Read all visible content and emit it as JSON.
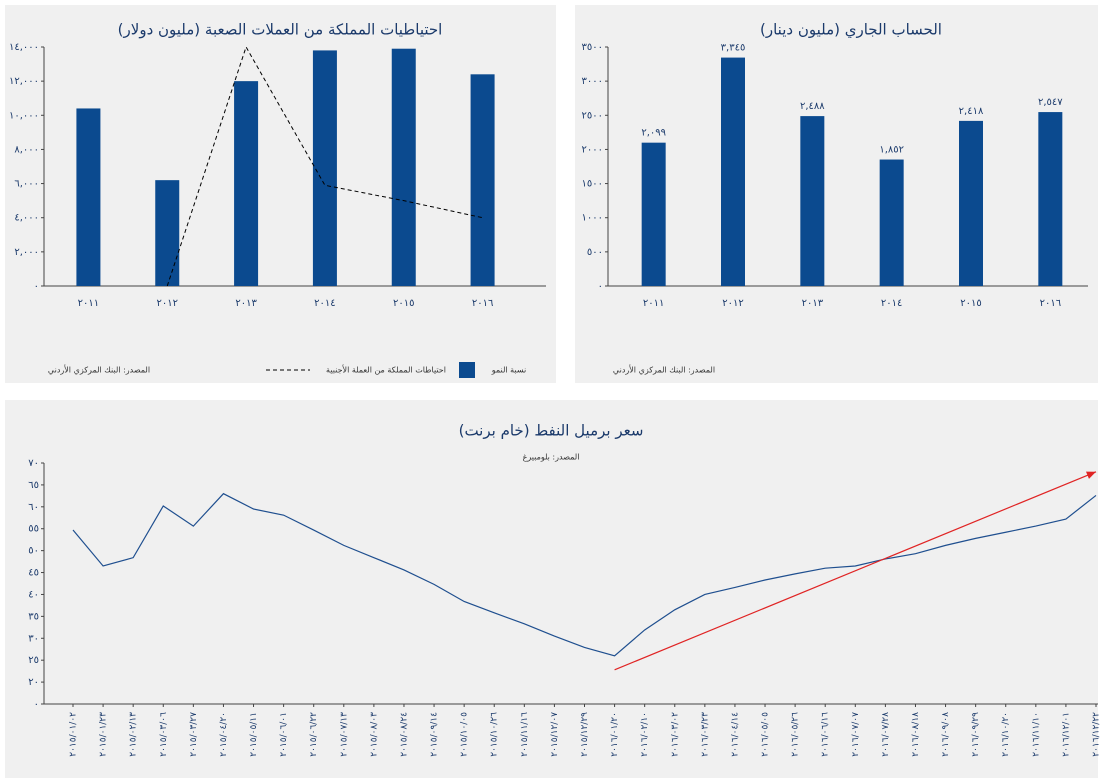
{
  "chart_data": [
    {
      "type": "bar",
      "title": "احتياطيات المملكة من العملات الصعبة (مليون دولار)",
      "categories": [
        "٢٠١١",
        "٢٠١٢",
        "٢٠١٣",
        "٢٠١٤",
        "٢٠١٥",
        "٢٠١٦"
      ],
      "series": [
        {
          "name": "نسبة النمو",
          "type": "bar",
          "color": "#0b4a8f",
          "values": [
            10400,
            6200,
            12000,
            13800,
            13900,
            12400
          ]
        },
        {
          "name": "احتياطات المملكة من العملة الأجنبية",
          "type": "line",
          "dashed": true,
          "color": "#000000",
          "values": [
            null,
            0,
            14000,
            5900,
            5000,
            4000
          ]
        }
      ],
      "ylim": [
        0,
        14000
      ],
      "yticks": [
        {
          "value": 0,
          "label": "٠"
        },
        {
          "value": 2000,
          "label": "٢,٠٠٠"
        },
        {
          "value": 4000,
          "label": "٤,٠٠٠"
        },
        {
          "value": 6000,
          "label": "٦,٠٠٠"
        },
        {
          "value": 8000,
          "label": "٨,٠٠٠"
        },
        {
          "value": 10000,
          "label": "١٠,٠٠٠"
        },
        {
          "value": 12000,
          "label": "١٢,٠٠٠"
        },
        {
          "value": 14000,
          "label": "١٤,٠٠٠"
        }
      ],
      "source": "المصدر: البنك المركزي الأردني"
    },
    {
      "type": "bar",
      "title": "الحساب الجاري (مليون دينار)",
      "categories": [
        "٢٠١١",
        "٢٠١٢",
        "٢٠١٣",
        "٢٠١٤",
        "٢٠١٥",
        "٢٠١٦"
      ],
      "values": [
        2099,
        3345,
        2488,
        1852,
        2418,
        2547
      ],
      "value_labels": [
        "٢,٠٩٩",
        "٣,٣٤٥",
        "٢,٤٨٨",
        "١,٨٥٢",
        "٢,٤١٨",
        "٢,٥٤٧"
      ],
      "color": "#0b4a8f",
      "ylim": [
        0,
        3500
      ],
      "yticks": [
        {
          "value": 0,
          "label": "٠"
        },
        {
          "value": 500,
          "label": "٥٠٠"
        },
        {
          "value": 1000,
          "label": "١٠٠٠"
        },
        {
          "value": 1500,
          "label": "١٥٠٠"
        },
        {
          "value": 2000,
          "label": "٢٠٠٠"
        },
        {
          "value": 2500,
          "label": "٢٥٠٠"
        },
        {
          "value": 3000,
          "label": "٣٠٠٠"
        },
        {
          "value": 3500,
          "label": "٣٥٠٠"
        }
      ],
      "source": "المصدر: البنك المركزي الأردني"
    },
    {
      "type": "line",
      "title": "سعر برميل النفط (خام برنت)",
      "subtitle": "المصدر: بلومبيرغ",
      "x": [
        "٢٠١٥/٠١/٠٢",
        "٢٠١٥/٠١/٢٣",
        "٢٠١٥/٠٢/١٣",
        "٢٠١٥/٠٣/٠٦",
        "٢٠١٥/٠٣/٢٧",
        "٢٠١٥/٠٤/٢٠",
        "٢٠١٥/٠٥/١١",
        "٢٠١٥/٠٦/٠١",
        "٢٠١٥/٠٦/٢٢",
        "٢٠١٥/٠٧/١٣",
        "٢٠١٥/٠٨/٠٣",
        "٢٠١٥/٠٨/٢٤",
        "٢٠١٥/٠٩/١٤",
        "٢٠١٥/١٠/٠٥",
        "٢٠١٥/١٠/٢٦",
        "٢٠١٥/١١/١٦",
        "٢٠١٥/١٢/٠٧",
        "٢٠١٥/١٢/٢٩",
        "٢٠١٦/٠١/٢٠",
        "٢٠١٦/٠٢/١٠",
        "٢٠١٦/٠٣/٠٢",
        "٢٠١٦/٠٣/٢٣",
        "٢٠١٦/٠٤/١٤",
        "٢٠١٦/٠٥/٠٥",
        "٢٠١٦/٠٥/٢٦",
        "٢٠١٦/٠٦/١٦",
        "٢٠١٦/٠٧/٠٧",
        "٢٠١٦/٠٧/٢٨",
        "٢٠١٦/٠٨/١٨",
        "٢٠١٦/٠٩/٠٨",
        "٢٠١٦/٠٩/٢٩",
        "٢٠١٦/١٠/٢٠",
        "٢٠١٦/١١/١٠",
        "٢٠١٦/١٢/٠١",
        "٢٠١٦/١٢/٢٢"
      ],
      "series": [
        {
          "color": "#1f4f8f",
          "values": [
            54.7,
            46.5,
            48.4,
            60.2,
            55.6,
            63.0,
            59.5,
            58.1,
            54.7,
            51.2,
            48.4,
            45.6,
            42.3,
            38.4,
            35.8,
            33.3,
            30.5,
            27.9,
            26.0,
            31.9,
            36.5,
            40.0,
            41.6,
            43.3,
            44.7,
            46.0,
            46.5,
            48.1,
            49.3,
            51.2,
            52.8,
            54.2,
            55.6,
            57.2,
            62.6
          ]
        }
      ],
      "trend": {
        "color": "#e02424",
        "x": [
          "٢٠١٦/٠١/٢٠",
          "٢٠١٦/١٢/٢٢"
        ],
        "values": [
          22.8,
          68
        ]
      },
      "ylim": [
        0,
        70
      ],
      "yticks": [
        {
          "value": 0,
          "label": "٠"
        },
        {
          "value": 20,
          "label": "٢٠"
        },
        {
          "value": 25,
          "label": "٢٥"
        },
        {
          "value": 30,
          "label": "٣٠"
        },
        {
          "value": 35,
          "label": "٣٥"
        },
        {
          "value": 40,
          "label": "٤٠"
        },
        {
          "value": 45,
          "label": "٤٥"
        },
        {
          "value": 50,
          "label": "٥٠"
        },
        {
          "value": 55,
          "label": "٥٥"
        },
        {
          "value": 60,
          "label": "٦٠"
        },
        {
          "value": 65,
          "label": "٦٥"
        },
        {
          "value": 70,
          "label": "٧٠"
        }
      ]
    }
  ]
}
